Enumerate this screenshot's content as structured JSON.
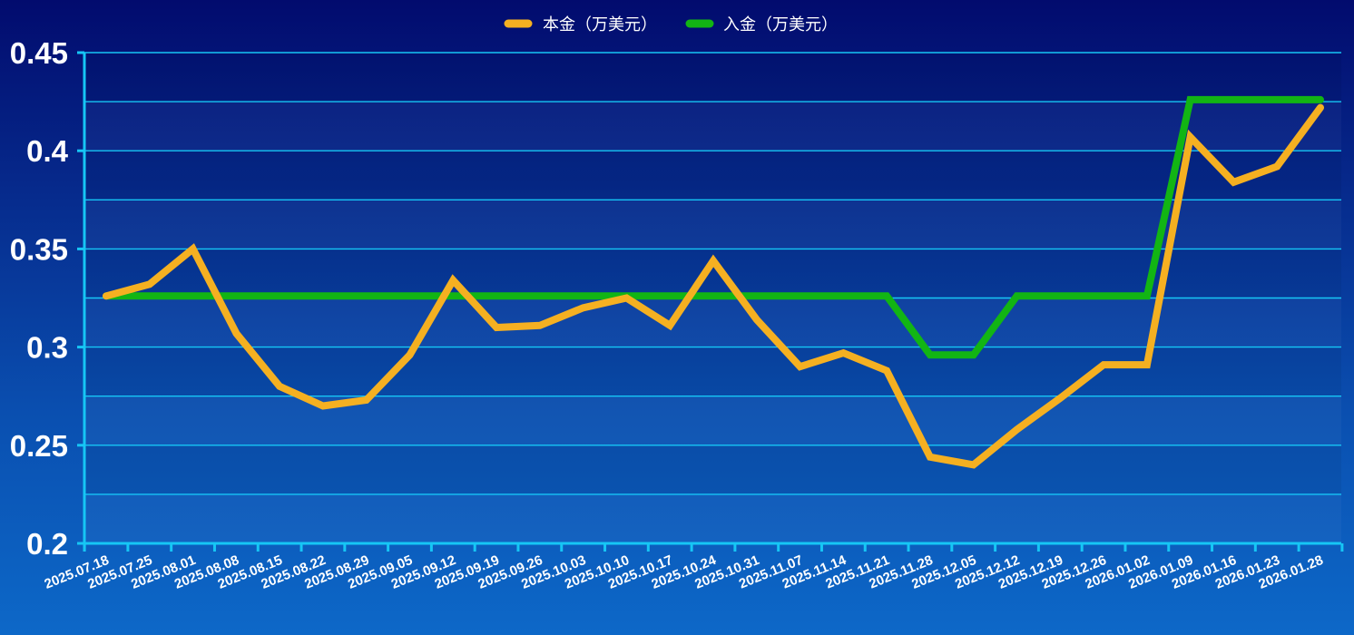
{
  "chart_data": {
    "type": "line",
    "x": [
      "2025.07.18",
      "2025.07.25",
      "2025.08.01",
      "2025.08.08",
      "2025.08.15",
      "2025.08.22",
      "2025.08.29",
      "2025.09.05",
      "2025.09.12",
      "2025.09.19",
      "2025.09.26",
      "2025.10.03",
      "2025.10.10",
      "2025.10.17",
      "2025.10.24",
      "2025.10.31",
      "2025.11.07",
      "2025.11.14",
      "2025.11.21",
      "2025.11.28",
      "2025.12.05",
      "2025.12.12",
      "2025.12.19",
      "2025.12.26",
      "2026.01.02",
      "2026.01.09",
      "2026.01.16",
      "2026.01.23",
      "2026.01.28"
    ],
    "series": [
      {
        "name": "本金（万美元）",
        "color": "#f5b021",
        "values": [
          0.326,
          0.332,
          0.35,
          0.307,
          0.28,
          0.27,
          0.273,
          0.296,
          0.334,
          0.31,
          0.311,
          0.32,
          0.325,
          0.311,
          0.344,
          0.314,
          0.29,
          0.297,
          0.288,
          0.244,
          0.24,
          0.258,
          0.274,
          0.291,
          0.291,
          0.407,
          0.384,
          0.392,
          0.422
        ]
      },
      {
        "name": "入金（万美元）",
        "color": "#12b514",
        "values": [
          0.326,
          0.326,
          0.326,
          0.326,
          0.326,
          0.326,
          0.326,
          0.326,
          0.326,
          0.326,
          0.326,
          0.326,
          0.326,
          0.326,
          0.326,
          0.326,
          0.326,
          0.326,
          0.326,
          0.296,
          0.296,
          0.326,
          0.326,
          0.326,
          0.326,
          0.426,
          0.426,
          0.426,
          0.426
        ]
      }
    ],
    "ylim": [
      0.2,
      0.45
    ],
    "yticks": [
      "0.2",
      "0.25",
      "0.3",
      "0.35",
      "0.4",
      "0.45"
    ],
    "grid": true,
    "legend": "top-center",
    "title": "",
    "xlabel": "",
    "ylabel": ""
  }
}
